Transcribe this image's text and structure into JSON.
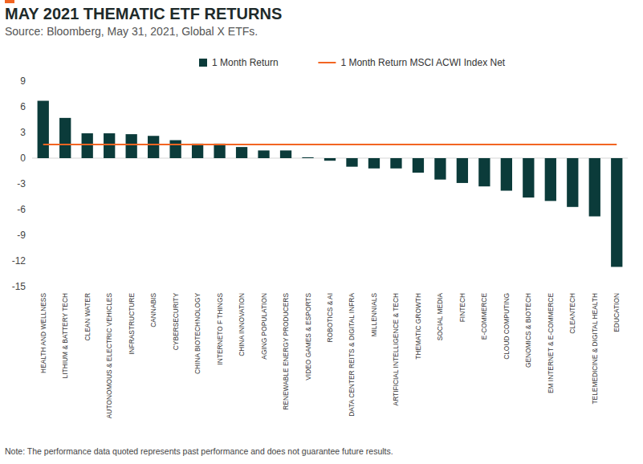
{
  "chart_data": {
    "type": "bar",
    "title": "MAY 2021 THEMATIC ETF RETURNS",
    "subtitle": "Source: Bloomberg, May 31, 2021, Global X ETFs.",
    "note": "Note: The performance data quoted represents past performance and does not guarantee future results.",
    "categories": [
      "HEALTH AND WELLNESS",
      "LITHIUM & BATTERY TECH",
      "CLEAN WATER",
      "AUTONOMOUS & ELECTRIC VEHICLES",
      "INFRASTRUCTURE",
      "CANNABIS",
      "CYBERSECURITY",
      "CHINA BIOTECHNOLOGY",
      "INTERNETO F THINGS",
      "CHINA INNOVATION",
      "AGING POPULATION",
      "RENEWABLE ENERGY PRODUCERS",
      "VIDEO GAMES & ESPORTS",
      "ROBOTICS & AI",
      "DATA CENTER REITS & DIGITAL INFRA",
      "MILLENNIALS",
      "ARTIFICIAL INTELLIGENCE & TECH",
      "THEMATIC GROWTH",
      "SOCIAL MEDIA",
      "FINTECH",
      "E-COMMERCE",
      "CLOUD COMPUTING",
      "GENOMICS & BIOTECH",
      "EM INTERNET & E-COMMERCE",
      "CLEANTECH",
      "TELEMEDICINE & DIGITAL HEALTH",
      "EDUCATION"
    ],
    "series": [
      {
        "name": "1 Month Return",
        "type": "bar",
        "color": "#0b3b3a",
        "values": [
          6.7,
          4.7,
          2.9,
          2.9,
          2.8,
          2.6,
          2.1,
          1.7,
          1.7,
          1.3,
          0.9,
          0.9,
          0.1,
          -0.3,
          -1.0,
          -1.2,
          -1.2,
          -1.7,
          -2.5,
          -2.9,
          -3.3,
          -3.8,
          -4.6,
          -5.0,
          -5.7,
          -6.8,
          -12.7
        ]
      },
      {
        "name": "1 Month Return MSCI ACWI Index Net",
        "type": "line",
        "color": "#f26522",
        "values": [
          1.6,
          1.6,
          1.6,
          1.6,
          1.6,
          1.6,
          1.6,
          1.6,
          1.6,
          1.6,
          1.6,
          1.6,
          1.6,
          1.6,
          1.6,
          1.6,
          1.6,
          1.6,
          1.6,
          1.6,
          1.6,
          1.6,
          1.6,
          1.6,
          1.6,
          1.6,
          1.6
        ]
      }
    ],
    "ylim": [
      -15,
      9
    ],
    "yticks": [
      -15,
      -12,
      -9,
      -6,
      -3,
      0,
      3,
      6,
      9
    ],
    "grid": false,
    "legend": "top"
  }
}
